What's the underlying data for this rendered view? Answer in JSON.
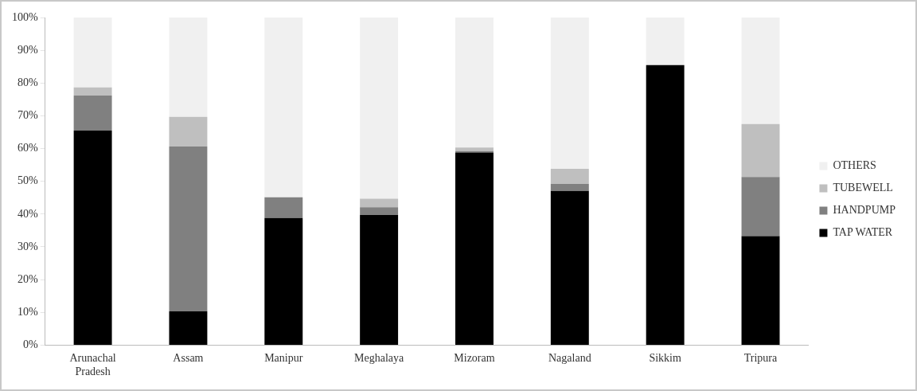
{
  "chart_data": {
    "type": "bar",
    "stacked": true,
    "categories": [
      "Arunachal Pradesh",
      "Assam",
      "Manipur",
      "Meghalaya",
      "Mizoram",
      "Nagaland",
      "Sikkim",
      "Tripura"
    ],
    "series": [
      {
        "name": "TAP WATER",
        "color": "#000000",
        "values": [
          65.5,
          10.3,
          38.8,
          39.7,
          58.8,
          47.1,
          85.5,
          33.3
        ]
      },
      {
        "name": "HANDPUMP",
        "color": "#808080",
        "values": [
          10.7,
          50.3,
          6.3,
          2.4,
          0.4,
          2.1,
          0,
          18
        ]
      },
      {
        "name": "TUBEWELL",
        "color": "#bfbfbf",
        "values": [
          2.5,
          9.1,
          0,
          2.6,
          1.1,
          4.6,
          0,
          16.2
        ]
      },
      {
        "name": "OTHERS",
        "color": "#f0f0f0",
        "values": [
          21.3,
          30.3,
          54.9,
          55.3,
          39.7,
          46.2,
          14.5,
          32.5
        ]
      }
    ],
    "ylim": [
      0,
      100
    ],
    "yticks": [
      {
        "value": 0,
        "label": "0%"
      },
      {
        "value": 10,
        "label": "10%"
      },
      {
        "value": 20,
        "label": "20%"
      },
      {
        "value": 30,
        "label": "30%"
      },
      {
        "value": 40,
        "label": "40%"
      },
      {
        "value": 50,
        "label": "50%"
      },
      {
        "value": 60,
        "label": "60%"
      },
      {
        "value": 70,
        "label": "70%"
      },
      {
        "value": 80,
        "label": "80%"
      },
      {
        "value": 90,
        "label": "90%"
      },
      {
        "value": 100,
        "label": "100%"
      }
    ],
    "grid": false,
    "legend": "right"
  }
}
